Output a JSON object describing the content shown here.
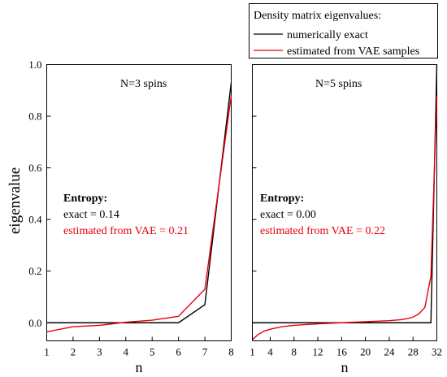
{
  "legend": {
    "title": "Density matrix eigenvalues:",
    "entries": [
      {
        "label": "numerically exact",
        "color": "#000000"
      },
      {
        "label": "estimated from VAE samples",
        "color": "#e8000b"
      }
    ]
  },
  "colors": {
    "exact": "#000000",
    "vae": "#e8000b"
  },
  "chart_data": [
    {
      "type": "line",
      "title": "N=3 spins",
      "xlabel": "n",
      "ylabel": "eigenvalue",
      "xlim": [
        1,
        8
      ],
      "ylim": [
        -0.07,
        1.0
      ],
      "xticks": [
        1,
        2,
        3,
        4,
        5,
        6,
        7,
        8
      ],
      "yticks": [
        0.0,
        0.2,
        0.4,
        0.6,
        0.8,
        1.0
      ],
      "ytick_labels": [
        "0.0",
        "0.2",
        "0.4",
        "0.6",
        "0.8",
        "1.0"
      ],
      "series": [
        {
          "name": "numerically exact",
          "x": [
            1,
            2,
            3,
            4,
            5,
            6,
            7,
            8
          ],
          "values": [
            0.0,
            0.0,
            0.0,
            0.0,
            0.0,
            0.0,
            0.07,
            0.93
          ]
        },
        {
          "name": "estimated from VAE samples",
          "x": [
            1,
            2,
            3,
            4,
            5,
            6,
            7,
            8
          ],
          "values": [
            -0.035,
            -0.015,
            -0.01,
            0.002,
            0.01,
            0.025,
            0.13,
            0.88
          ]
        }
      ],
      "annotation": {
        "heading": "Entropy:",
        "exact": "exact = 0.14",
        "estimated": "estimated from VAE = 0.21"
      }
    },
    {
      "type": "line",
      "title": "N=5 spins",
      "xlabel": "n",
      "ylabel": "",
      "xlim": [
        1,
        32
      ],
      "ylim": [
        -0.07,
        1.0
      ],
      "xticks": [
        1,
        4,
        8,
        12,
        16,
        20,
        24,
        28,
        32
      ],
      "yticks": [
        0.0,
        0.2,
        0.4,
        0.6,
        0.8,
        1.0
      ],
      "ytick_labels": [
        "",
        "",
        "",
        "",
        "",
        ""
      ],
      "series": [
        {
          "name": "numerically exact",
          "x": [
            1,
            31,
            32
          ],
          "values": [
            0.0,
            0.0,
            1.0
          ]
        },
        {
          "name": "estimated from VAE samples",
          "x": [
            1,
            2,
            3,
            4,
            5,
            6,
            8,
            10,
            12,
            14,
            16,
            18,
            20,
            22,
            24,
            26,
            27,
            28,
            29,
            30,
            31,
            32
          ],
          "values": [
            -0.065,
            -0.045,
            -0.032,
            -0.025,
            -0.02,
            -0.015,
            -0.01,
            -0.007,
            -0.004,
            -0.002,
            0.0,
            0.002,
            0.004,
            0.006,
            0.008,
            0.012,
            0.016,
            0.022,
            0.035,
            0.06,
            0.18,
            0.88
          ]
        }
      ],
      "annotation": {
        "heading": "Entropy:",
        "exact": "exact = 0.00",
        "estimated": "estimated from VAE = 0.22"
      }
    }
  ]
}
